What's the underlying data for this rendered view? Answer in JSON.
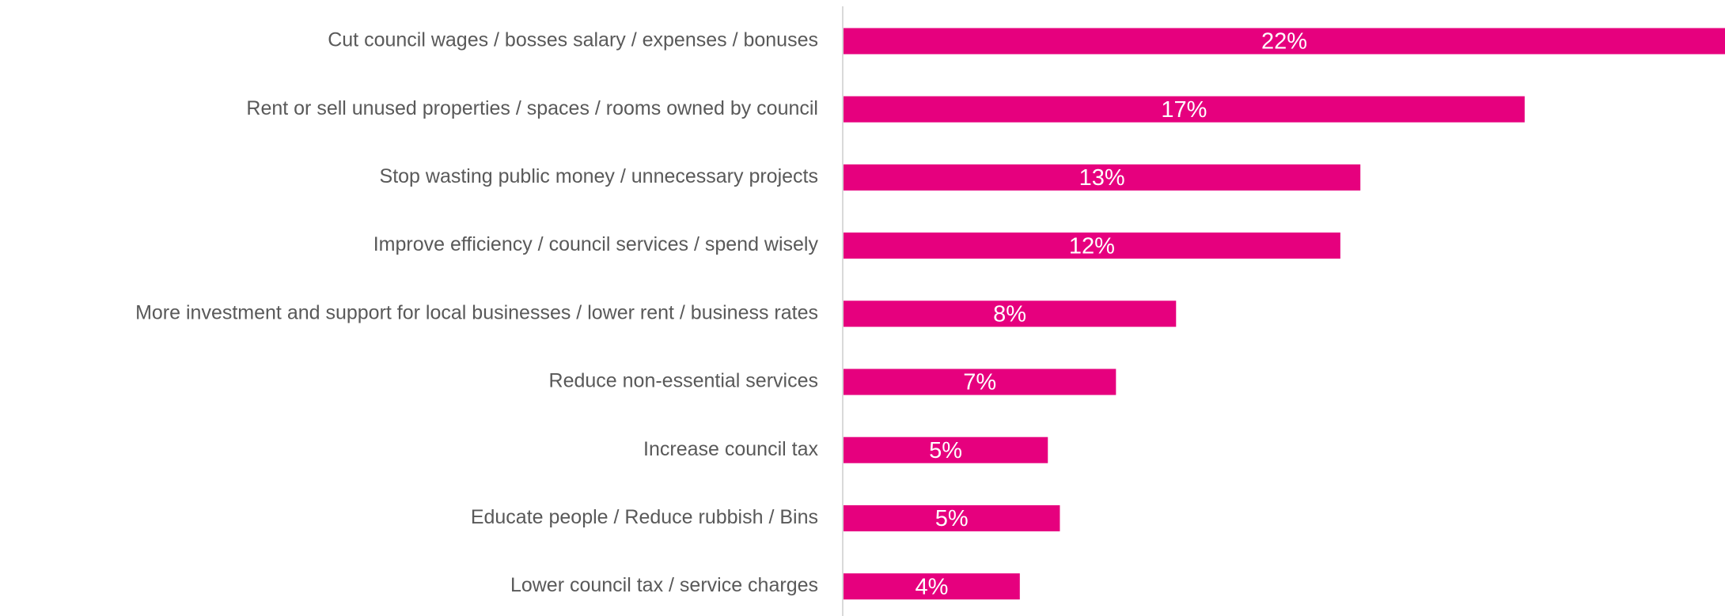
{
  "chart_data": {
    "type": "bar",
    "orientation": "horizontal",
    "categories": [
      "Cut council wages / bosses salary / expenses / bonuses",
      "Rent or sell unused properties / spaces / rooms owned by council",
      "Stop wasting public money / unnecessary projects",
      "Improve efficiency / council services / spend wisely",
      "More investment and support for local businesses / lower rent / business rates",
      "Reduce non-essential services",
      "Increase council tax",
      "Educate people / Reduce rubbish / Bins",
      "Lower council tax / service charges"
    ],
    "values": [
      22,
      17,
      12.9,
      12.4,
      8.3,
      6.8,
      5.1,
      5.4,
      4.4
    ],
    "value_labels": [
      "22%",
      "17%",
      "13%",
      "12%",
      "8%",
      "7%",
      "5%",
      "5%",
      "4%"
    ],
    "color": "#e6007e",
    "xlim": [
      0,
      22
    ]
  }
}
